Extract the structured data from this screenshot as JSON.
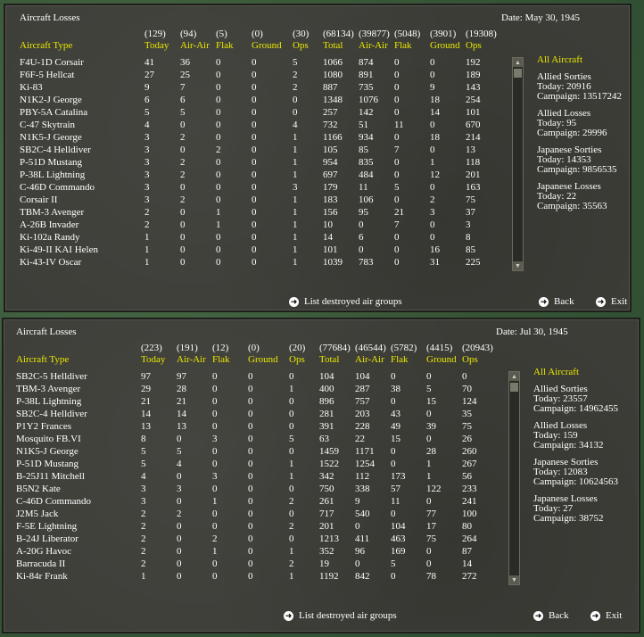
{
  "panels": [
    {
      "title": "Aircraft Losses",
      "date": "Date: May 30, 1945",
      "headers": [
        {
          "total": "",
          "label": "Aircraft Type"
        },
        {
          "total": "(129)",
          "label": "Today"
        },
        {
          "total": "(94)",
          "label": "Air-Air"
        },
        {
          "total": "(5)",
          "label": "Flak"
        },
        {
          "total": "(0)",
          "label": "Ground"
        },
        {
          "total": "(30)",
          "label": "Ops"
        },
        {
          "total": "(68134)",
          "label": "Total"
        },
        {
          "total": "(39877)",
          "label": "Air-Air"
        },
        {
          "total": "(5048)",
          "label": "Flak"
        },
        {
          "total": "(3901)",
          "label": "Ground"
        },
        {
          "total": "(19308)",
          "label": "Ops"
        }
      ],
      "rows": [
        [
          "F4U-1D Corsair",
          "41",
          "36",
          "0",
          "0",
          "5",
          "1066",
          "874",
          "0",
          "0",
          "192"
        ],
        [
          "F6F-5 Hellcat",
          "27",
          "25",
          "0",
          "0",
          "2",
          "1080",
          "891",
          "0",
          "0",
          "189"
        ],
        [
          "Ki-83",
          "9",
          "7",
          "0",
          "0",
          "2",
          "887",
          "735",
          "0",
          "9",
          "143"
        ],
        [
          "N1K2-J George",
          "6",
          "6",
          "0",
          "0",
          "0",
          "1348",
          "1076",
          "0",
          "18",
          "254"
        ],
        [
          "PBY-5A Catalina",
          "5",
          "5",
          "0",
          "0",
          "0",
          "257",
          "142",
          "0",
          "14",
          "101"
        ],
        [
          "C-47 Skytrain",
          "4",
          "0",
          "0",
          "0",
          "4",
          "732",
          "51",
          "11",
          "0",
          "670"
        ],
        [
          "N1K5-J George",
          "3",
          "2",
          "0",
          "0",
          "1",
          "1166",
          "934",
          "0",
          "18",
          "214"
        ],
        [
          "SB2C-4 Helldiver",
          "3",
          "0",
          "2",
          "0",
          "1",
          "105",
          "85",
          "7",
          "0",
          "13"
        ],
        [
          "P-51D Mustang",
          "3",
          "2",
          "0",
          "0",
          "1",
          "954",
          "835",
          "0",
          "1",
          "118"
        ],
        [
          "P-38L Lightning",
          "3",
          "2",
          "0",
          "0",
          "1",
          "697",
          "484",
          "0",
          "12",
          "201"
        ],
        [
          "C-46D Commando",
          "3",
          "0",
          "0",
          "0",
          "3",
          "179",
          "11",
          "5",
          "0",
          "163"
        ],
        [
          "Corsair II",
          "3",
          "2",
          "0",
          "0",
          "1",
          "183",
          "106",
          "0",
          "2",
          "75"
        ],
        [
          "TBM-3 Avenger",
          "2",
          "0",
          "1",
          "0",
          "1",
          "156",
          "95",
          "21",
          "3",
          "37"
        ],
        [
          "A-26B Invader",
          "2",
          "0",
          "1",
          "0",
          "1",
          "10",
          "0",
          "7",
          "0",
          "3"
        ],
        [
          "Ki-102a Randy",
          "1",
          "0",
          "0",
          "0",
          "1",
          "14",
          "6",
          "0",
          "0",
          "8"
        ],
        [
          "Ki-49-II KAI Helen",
          "1",
          "0",
          "0",
          "0",
          "1",
          "101",
          "0",
          "0",
          "16",
          "85"
        ],
        [
          "Ki-43-IV Oscar",
          "1",
          "0",
          "0",
          "0",
          "1",
          "1039",
          "783",
          "0",
          "31",
          "225"
        ]
      ],
      "side": {
        "heading": "All Aircraft",
        "blocks": [
          [
            "Allied Sorties",
            "Today:  20916",
            "Campaign: 13517242"
          ],
          [
            "Allied Losses",
            "Today:  95",
            "Campaign: 29996"
          ],
          [
            "Japanese Sorties",
            "Today:  14353",
            "Campaign: 9856535"
          ],
          [
            "Japanese Losses",
            "Today:  22",
            "Campaign: 35563"
          ]
        ]
      },
      "buttons": {
        "list": "List destroyed air groups",
        "back": "Back",
        "exit": "Exit"
      }
    },
    {
      "title": "Aircraft Losses",
      "date": "Date: Jul 30, 1945",
      "headers": [
        {
          "total": "",
          "label": "Aircraft Type"
        },
        {
          "total": "(223)",
          "label": "Today"
        },
        {
          "total": "(191)",
          "label": "Air-Air"
        },
        {
          "total": "(12)",
          "label": "Flak"
        },
        {
          "total": "(0)",
          "label": "Ground"
        },
        {
          "total": "(20)",
          "label": "Ops"
        },
        {
          "total": "(77684)",
          "label": "Total"
        },
        {
          "total": "(46544)",
          "label": "Air-Air"
        },
        {
          "total": "(5782)",
          "label": "Flak"
        },
        {
          "total": "(4415)",
          "label": "Ground"
        },
        {
          "total": "(20943)",
          "label": "Ops"
        }
      ],
      "rows": [
        [
          "SB2C-5 Helldiver",
          "97",
          "97",
          "0",
          "0",
          "0",
          "104",
          "104",
          "0",
          "0",
          "0"
        ],
        [
          "TBM-3 Avenger",
          "29",
          "28",
          "0",
          "0",
          "1",
          "400",
          "287",
          "38",
          "5",
          "70"
        ],
        [
          "P-38L Lightning",
          "21",
          "21",
          "0",
          "0",
          "0",
          "896",
          "757",
          "0",
          "15",
          "124"
        ],
        [
          "SB2C-4 Helldiver",
          "14",
          "14",
          "0",
          "0",
          "0",
          "281",
          "203",
          "43",
          "0",
          "35"
        ],
        [
          "P1Y2 Frances",
          "13",
          "13",
          "0",
          "0",
          "0",
          "391",
          "228",
          "49",
          "39",
          "75"
        ],
        [
          "Mosquito FB.VI",
          "8",
          "0",
          "3",
          "0",
          "5",
          "63",
          "22",
          "15",
          "0",
          "26"
        ],
        [
          "N1K5-J George",
          "5",
          "5",
          "0",
          "0",
          "0",
          "1459",
          "1171",
          "0",
          "28",
          "260"
        ],
        [
          "P-51D Mustang",
          "5",
          "4",
          "0",
          "0",
          "1",
          "1522",
          "1254",
          "0",
          "1",
          "267"
        ],
        [
          "B-25J11 Mitchell",
          "4",
          "0",
          "3",
          "0",
          "1",
          "342",
          "112",
          "173",
          "1",
          "56"
        ],
        [
          "B5N2 Kate",
          "3",
          "3",
          "0",
          "0",
          "0",
          "750",
          "338",
          "57",
          "122",
          "233"
        ],
        [
          "C-46D Commando",
          "3",
          "0",
          "1",
          "0",
          "2",
          "261",
          "9",
          "11",
          "0",
          "241"
        ],
        [
          "J2M5 Jack",
          "2",
          "2",
          "0",
          "0",
          "0",
          "717",
          "540",
          "0",
          "77",
          "100"
        ],
        [
          "F-5E Lightning",
          "2",
          "0",
          "0",
          "0",
          "2",
          "201",
          "0",
          "104",
          "17",
          "80"
        ],
        [
          "B-24J Liberator",
          "2",
          "0",
          "2",
          "0",
          "0",
          "1213",
          "411",
          "463",
          "75",
          "264"
        ],
        [
          "A-20G Havoc",
          "2",
          "0",
          "1",
          "0",
          "1",
          "352",
          "96",
          "169",
          "0",
          "87"
        ],
        [
          "Barracuda II",
          "2",
          "0",
          "0",
          "0",
          "2",
          "19",
          "0",
          "5",
          "0",
          "14"
        ],
        [
          "Ki-84r Frank",
          "1",
          "0",
          "0",
          "0",
          "1",
          "1192",
          "842",
          "0",
          "78",
          "272"
        ]
      ],
      "side": {
        "heading": "All Aircraft",
        "blocks": [
          [
            "Allied Sorties",
            "Today:  23557",
            "Campaign: 14962455"
          ],
          [
            "Allied Losses",
            "Today:  159",
            "Campaign: 34132"
          ],
          [
            "Japanese Sorties",
            "Today:  12083",
            "Campaign: 10624563"
          ],
          [
            "Japanese Losses",
            "Today:  27",
            "Campaign: 38752"
          ]
        ]
      },
      "buttons": {
        "list": "List destroyed air groups",
        "back": "Back",
        "exit": "Exit"
      }
    }
  ],
  "colors": {
    "header_yellow": "#e8e800",
    "panel_bg": "#3d3d38",
    "text": "#ffffff"
  }
}
